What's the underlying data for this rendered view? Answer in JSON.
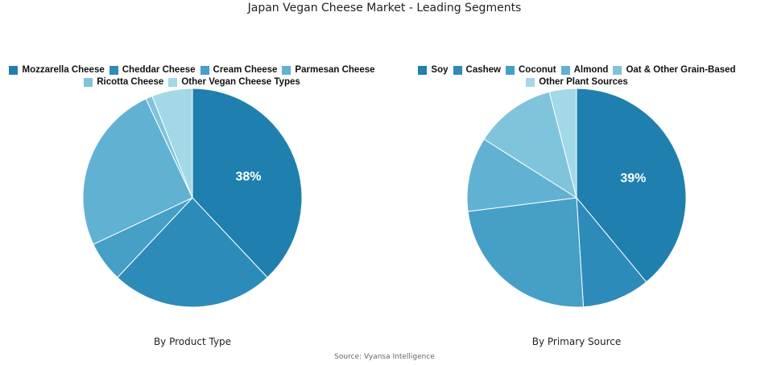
{
  "title": "Japan Vegan Cheese Market - Leading Segments",
  "source": "Source: Vyansa Intelligence",
  "chart_data": [
    {
      "type": "pie",
      "title": "By Product Type",
      "categories": [
        "Mozzarella Cheese",
        "Cheddar Cheese",
        "Cream Cheese",
        "Parmesan Cheese",
        "Ricotta Cheese",
        "Other Vegan Cheese Types"
      ],
      "values": [
        38,
        24,
        6,
        25,
        1,
        6
      ],
      "labels": [
        "38%",
        "",
        "",
        "",
        "",
        ""
      ],
      "colors": [
        "#1f7faf",
        "#2d8bba",
        "#459fc7",
        "#61b1d3",
        "#7fc4dc",
        "#a3d8e7"
      ],
      "legend": "top"
    },
    {
      "type": "pie",
      "title": "By Primary Source",
      "categories": [
        "Soy",
        "Cashew",
        "Coconut",
        "Almond",
        "Oat & Other Grain-Based",
        "Other Plant Sources"
      ],
      "values": [
        39,
        10,
        24,
        11,
        12,
        4
      ],
      "labels": [
        "39%",
        "",
        "",
        "",
        "",
        ""
      ],
      "colors": [
        "#1f7faf",
        "#2d8bba",
        "#459fc7",
        "#61b1d3",
        "#7fc4dc",
        "#a3d8e7"
      ],
      "legend": "top"
    }
  ]
}
